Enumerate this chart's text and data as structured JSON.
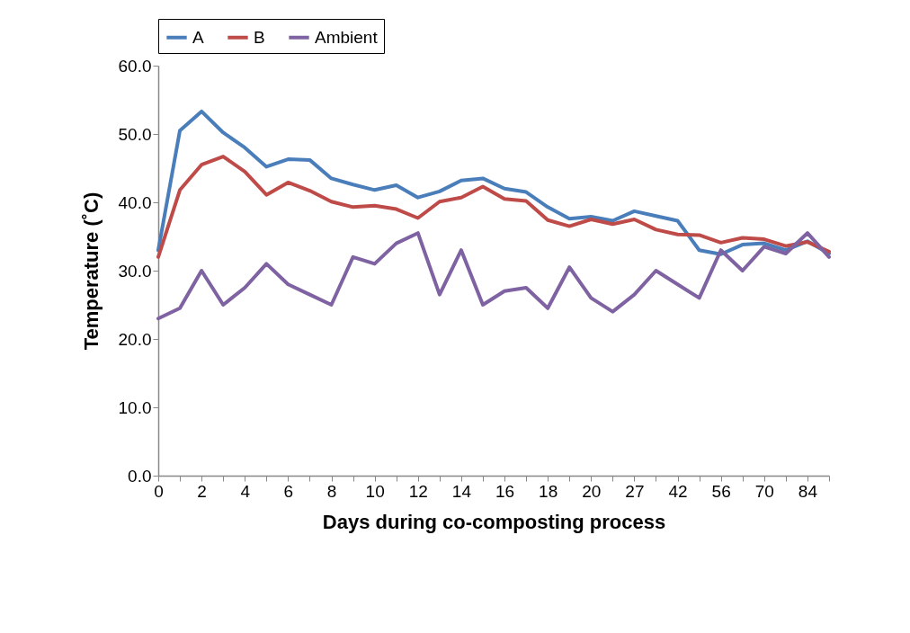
{
  "chart_data": {
    "type": "line",
    "xlabel": "Days during co-composting process",
    "ylabel": "Temperature (˚C)",
    "categories": [
      "0",
      null,
      "2",
      null,
      "4",
      null,
      "6",
      null,
      "8",
      null,
      "10",
      null,
      "12",
      null,
      "14",
      null,
      "16",
      null,
      "18",
      null,
      "20",
      null,
      "27",
      null,
      "42",
      null,
      "56",
      null,
      "70",
      null,
      "84",
      null
    ],
    "series": [
      {
        "name": "A",
        "color": "#4a7ebb",
        "values": [
          33,
          50.5,
          53.3,
          50.2,
          48,
          45.2,
          46.3,
          46.2,
          43.5,
          42.6,
          41.8,
          42.5,
          40.7,
          41.6,
          43.2,
          43.5,
          42,
          41.5,
          39.3,
          37.6,
          37.9,
          37.3,
          38.7,
          38,
          37.3,
          33,
          32.4,
          33.8,
          34,
          33,
          34.3,
          32.5
        ]
      },
      {
        "name": "B",
        "color": "#be4b48",
        "values": [
          32,
          41.8,
          45.5,
          46.7,
          44.5,
          41.1,
          42.9,
          41.7,
          40.1,
          39.3,
          39.5,
          39,
          37.7,
          40.1,
          40.7,
          42.3,
          40.5,
          40.2,
          37.4,
          36.5,
          37.5,
          36.8,
          37.5,
          36,
          35.3,
          35.2,
          34.1,
          34.8,
          34.6,
          33.6,
          34.2,
          32.8
        ]
      },
      {
        "name": "Ambient",
        "color": "#7f62a1",
        "values": [
          23,
          24.5,
          30,
          25,
          27.5,
          31,
          28,
          26.5,
          25,
          32,
          31,
          34,
          35.5,
          26.5,
          33,
          25,
          27,
          27.5,
          24.5,
          30.5,
          26,
          24,
          26.5,
          30,
          28,
          26,
          33,
          30,
          33.5,
          32.5,
          35.5,
          32
        ]
      }
    ],
    "ylim": [
      0,
      60
    ],
    "yticks": [
      {
        "value": 0,
        "label": "0.0"
      },
      {
        "value": 10,
        "label": "10.0"
      },
      {
        "value": 20,
        "label": "20.0"
      },
      {
        "value": 30,
        "label": "30.0"
      },
      {
        "value": 40,
        "label": "40.0"
      },
      {
        "value": 50,
        "label": "50.0"
      },
      {
        "value": 60,
        "label": "60.0"
      }
    ],
    "grid": false,
    "legend": "top",
    "marker": "none",
    "line_style": "solid"
  }
}
